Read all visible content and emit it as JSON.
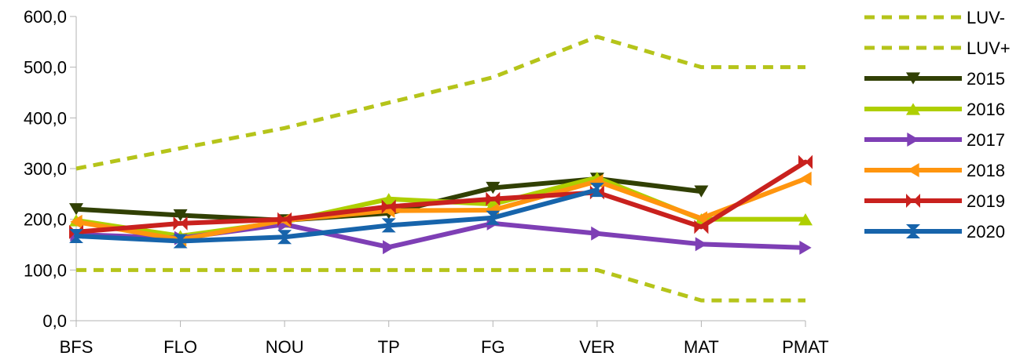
{
  "chart_data": {
    "type": "line",
    "categories": [
      "BFS",
      "FLO",
      "NOU",
      "TP",
      "FG",
      "VER",
      "MAT",
      "PMAT"
    ],
    "ylim": [
      0,
      600
    ],
    "yticks": [
      "0,0",
      "100,0",
      "200,0",
      "300,0",
      "400,0",
      "500,0",
      "600,0"
    ],
    "grid": false,
    "legend_position": "right",
    "series": [
      {
        "name": "LUV-",
        "color": "#b5c41a",
        "style": "dashed",
        "marker": "none",
        "values": [
          100,
          100,
          100,
          100,
          100,
          100,
          40,
          40
        ]
      },
      {
        "name": "LUV+",
        "color": "#b5c41a",
        "style": "dashed",
        "marker": "none",
        "values": [
          300,
          340,
          380,
          430,
          480,
          560,
          500,
          500
        ]
      },
      {
        "name": "2015",
        "color": "#314004",
        "style": "solid",
        "marker": "triangle-down",
        "values": [
          220,
          208,
          198,
          212,
          262,
          280,
          255,
          null
        ]
      },
      {
        "name": "2016",
        "color": "#aecf00",
        "style": "solid",
        "marker": "triangle-up",
        "values": [
          198,
          167,
          195,
          240,
          230,
          282,
          200,
          200
        ]
      },
      {
        "name": "2017",
        "color": "#7e3fb5",
        "style": "solid",
        "marker": "triangle-right",
        "values": [
          170,
          163,
          190,
          145,
          192,
          172,
          151,
          144
        ]
      },
      {
        "name": "2018",
        "color": "#ff950e",
        "style": "solid",
        "marker": "triangle-left",
        "values": [
          195,
          160,
          198,
          217,
          218,
          275,
          202,
          280
        ]
      },
      {
        "name": "2019",
        "color": "#c9211e",
        "style": "solid",
        "marker": "bowtie",
        "values": [
          175,
          192,
          200,
          225,
          240,
          253,
          185,
          313
        ]
      },
      {
        "name": "2020",
        "color": "#1764ab",
        "style": "solid",
        "marker": "hourglass",
        "values": [
          167,
          157,
          165,
          188,
          203,
          258,
          null,
          null
        ]
      }
    ]
  }
}
